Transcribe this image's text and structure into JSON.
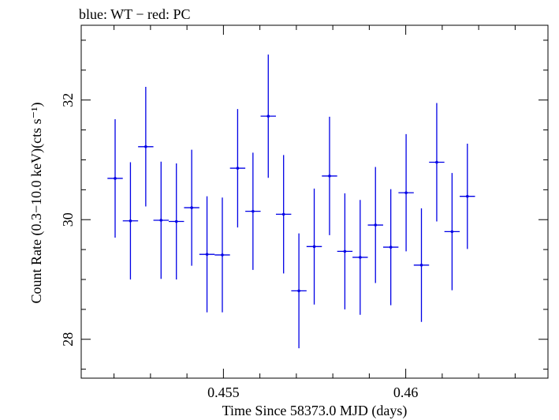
{
  "chart_data": {
    "type": "scatter",
    "title": "blue: WT − red: PC",
    "xlabel": "Time Since 58373.0 MJD (days)",
    "ylabel": "Count Rate (0.3−10.0 keV)(cts s⁻¹)",
    "xlim": [
      0.4511,
      0.4639
    ],
    "ylim": [
      27.35,
      33.25
    ],
    "x_major_ticks": [
      0.455,
      0.46
    ],
    "x_tick_labels": [
      "0.455",
      "0.46"
    ],
    "x_minor_step": 0.001,
    "y_major_ticks": [
      28,
      30,
      32
    ],
    "y_tick_labels": [
      "28",
      "30",
      "32"
    ],
    "y_minor_step": 0.5,
    "grid": false,
    "series": [
      {
        "color": "#0000e6",
        "points": [
          {
            "x": 0.45203,
            "xerr": 0.00021,
            "y": 30.69,
            "yerr": 0.99
          },
          {
            "x": 0.45245,
            "xerr": 0.00021,
            "y": 29.98,
            "yerr": 0.98
          },
          {
            "x": 0.45287,
            "xerr": 0.00021,
            "y": 31.22,
            "yerr": 1.0
          },
          {
            "x": 0.45329,
            "xerr": 0.00021,
            "y": 29.99,
            "yerr": 0.98
          },
          {
            "x": 0.45371,
            "xerr": 0.00021,
            "y": 29.97,
            "yerr": 0.97
          },
          {
            "x": 0.45413,
            "xerr": 0.00021,
            "y": 30.2,
            "yerr": 0.97
          },
          {
            "x": 0.45455,
            "xerr": 0.00021,
            "y": 29.42,
            "yerr": 0.97
          },
          {
            "x": 0.45497,
            "xerr": 0.00021,
            "y": 29.41,
            "yerr": 0.96
          },
          {
            "x": 0.45539,
            "xerr": 0.00021,
            "y": 30.86,
            "yerr": 0.99
          },
          {
            "x": 0.45581,
            "xerr": 0.00021,
            "y": 30.14,
            "yerr": 0.98
          },
          {
            "x": 0.45623,
            "xerr": 0.00021,
            "y": 31.73,
            "yerr": 1.03
          },
          {
            "x": 0.45665,
            "xerr": 0.00021,
            "y": 30.09,
            "yerr": 0.99
          },
          {
            "x": 0.45707,
            "xerr": 0.00021,
            "y": 28.81,
            "yerr": 0.96
          },
          {
            "x": 0.45749,
            "xerr": 0.00021,
            "y": 29.55,
            "yerr": 0.97
          },
          {
            "x": 0.45791,
            "xerr": 0.00021,
            "y": 30.73,
            "yerr": 0.99
          },
          {
            "x": 0.45833,
            "xerr": 0.00021,
            "y": 29.47,
            "yerr": 0.97
          },
          {
            "x": 0.45875,
            "xerr": 0.00021,
            "y": 29.37,
            "yerr": 0.96
          },
          {
            "x": 0.45917,
            "xerr": 0.00021,
            "y": 29.91,
            "yerr": 0.97
          },
          {
            "x": 0.45959,
            "xerr": 0.00021,
            "y": 29.54,
            "yerr": 0.97
          },
          {
            "x": 0.46001,
            "xerr": 0.00021,
            "y": 30.45,
            "yerr": 0.98
          },
          {
            "x": 0.46043,
            "xerr": 0.00021,
            "y": 29.24,
            "yerr": 0.95
          },
          {
            "x": 0.46085,
            "xerr": 0.00021,
            "y": 30.96,
            "yerr": 0.99
          },
          {
            "x": 0.46127,
            "xerr": 0.00021,
            "y": 29.8,
            "yerr": 0.98
          },
          {
            "x": 0.46169,
            "xerr": 0.00021,
            "y": 30.39,
            "yerr": 0.88
          }
        ]
      }
    ]
  }
}
